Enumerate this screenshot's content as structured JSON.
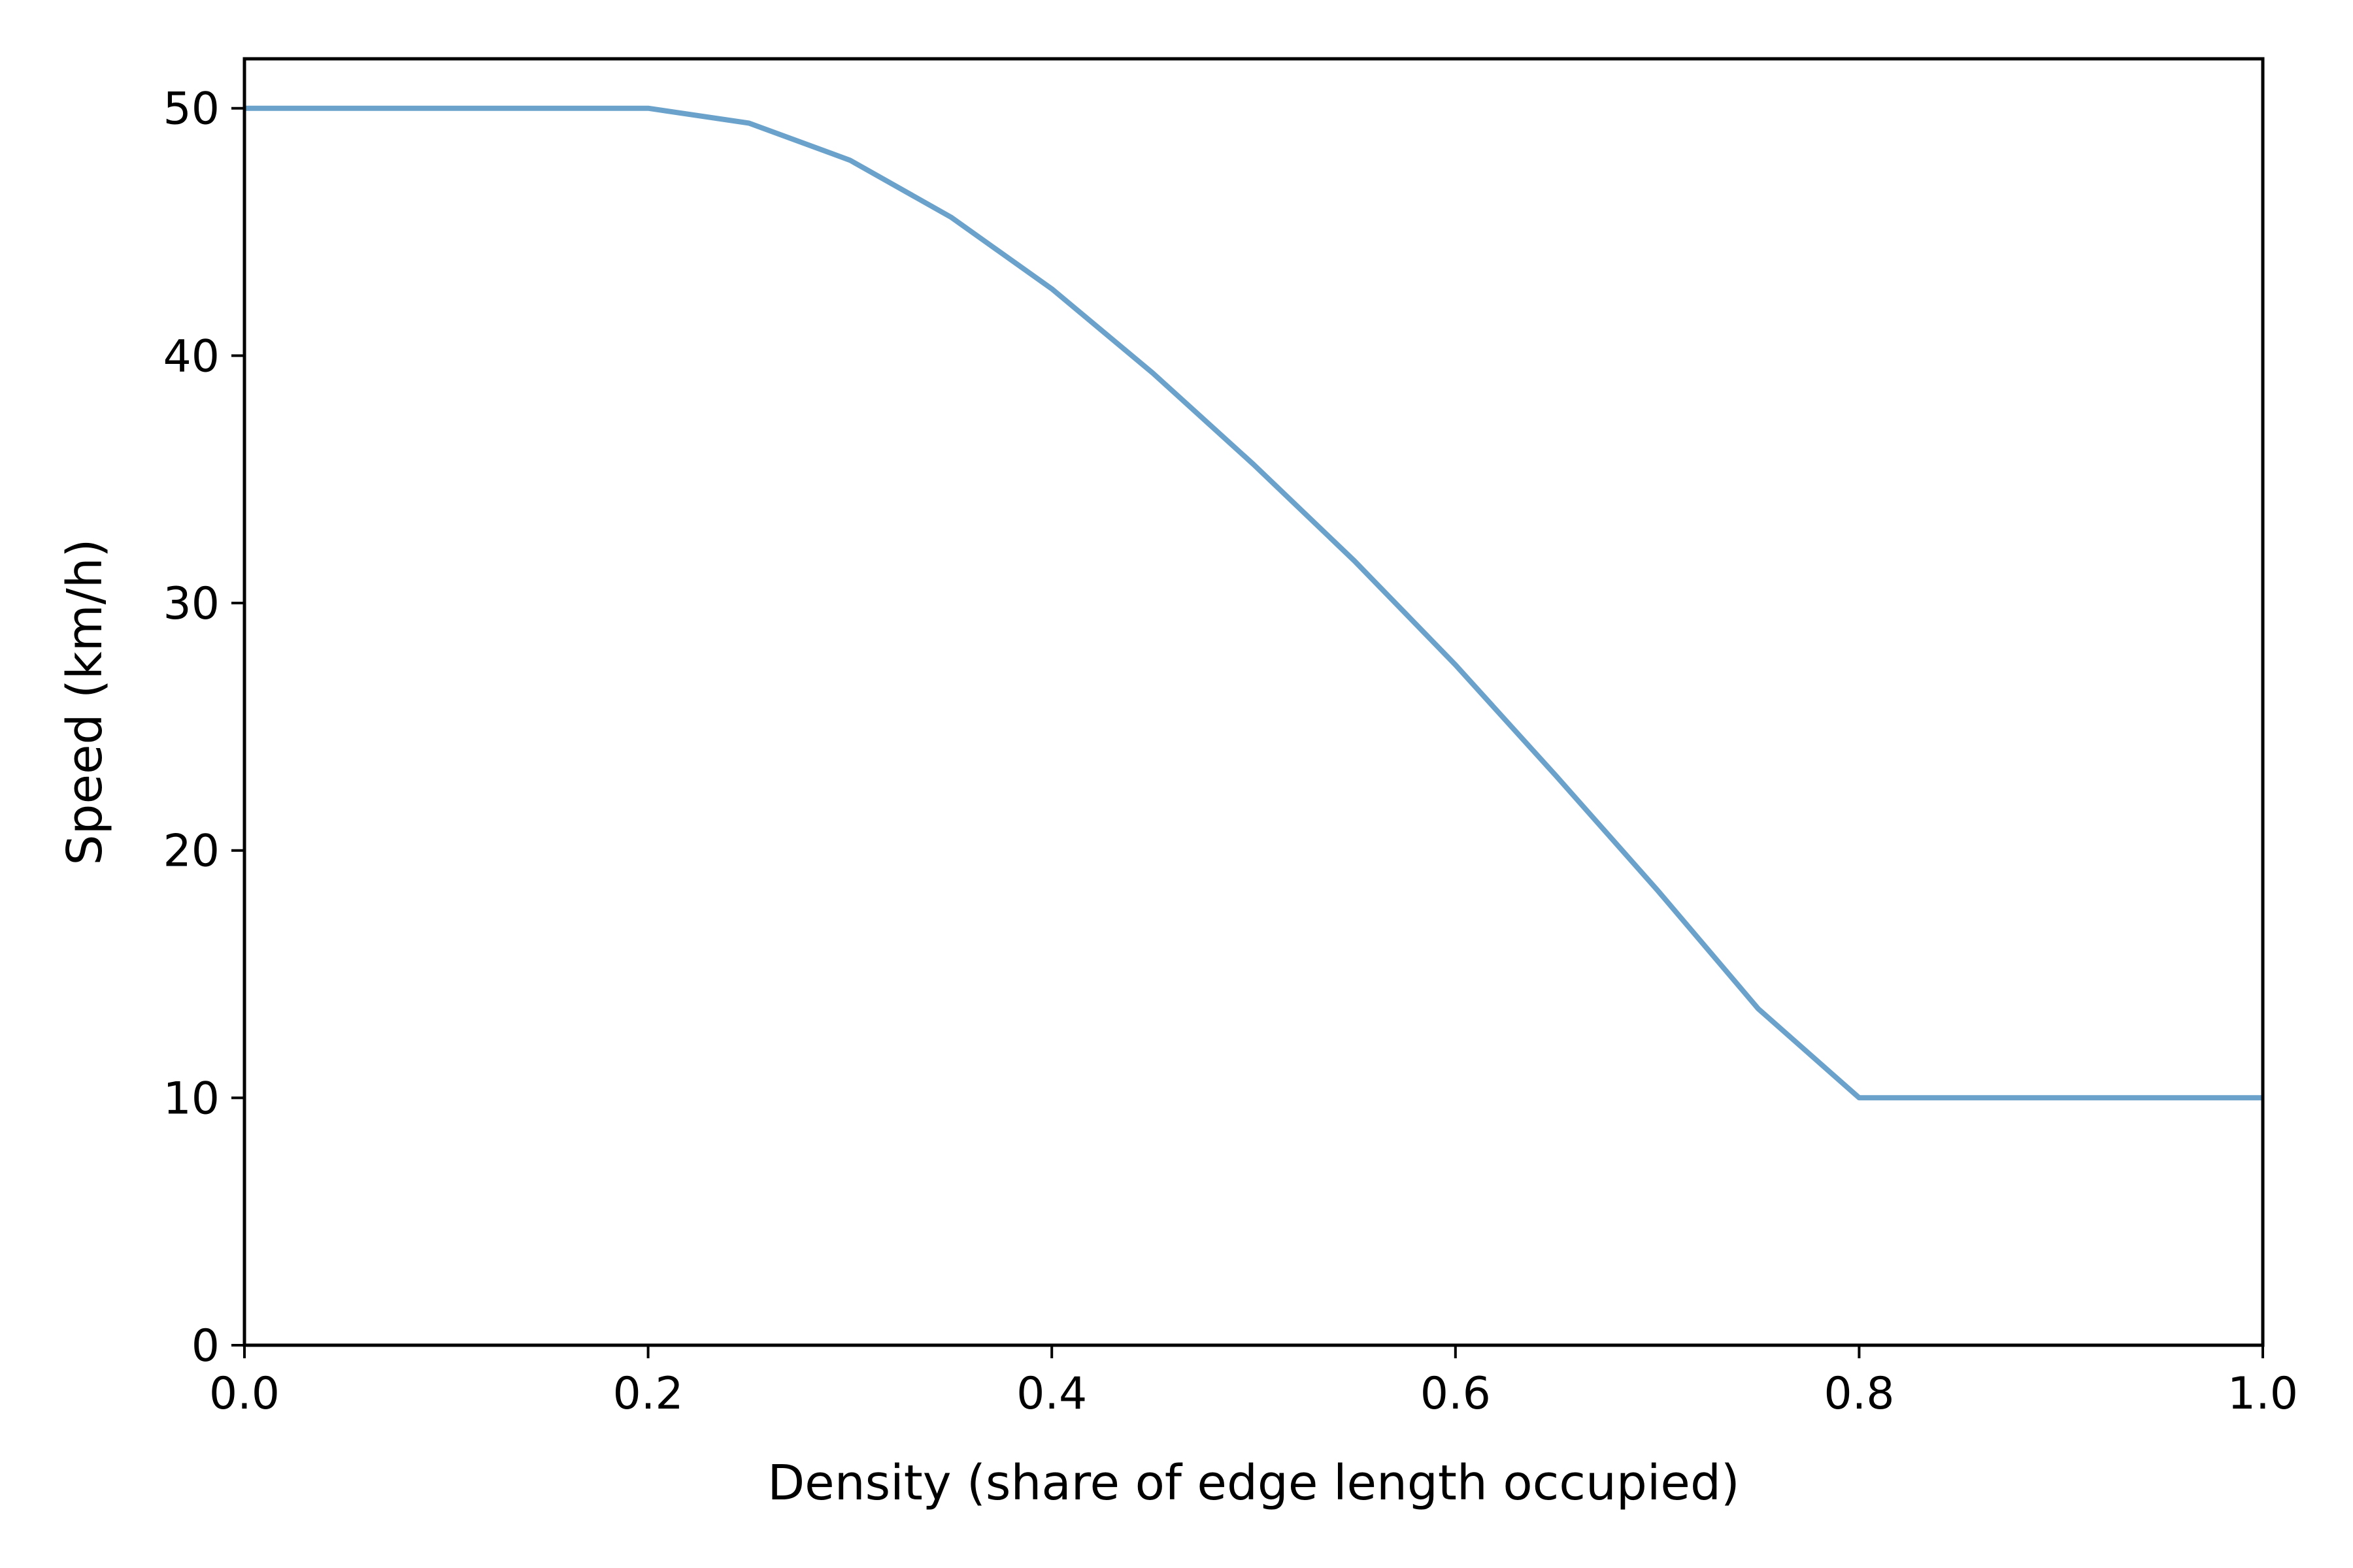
{
  "chart_data": {
    "type": "line",
    "title": "",
    "xlabel": "Density (share of edge length occupied)",
    "ylabel": "Speed (km/h)",
    "xlim": [
      0.0,
      1.0
    ],
    "ylim": [
      0,
      52
    ],
    "x_ticks": [
      "0.0",
      "0.2",
      "0.4",
      "0.6",
      "0.8",
      "1.0"
    ],
    "y_ticks": [
      "0",
      "10",
      "20",
      "30",
      "40",
      "50"
    ],
    "grid": false,
    "legend": "none",
    "series": [
      {
        "color": "#6aa2cb",
        "x": [
          0.0,
          0.2,
          0.25,
          0.3,
          0.35,
          0.4,
          0.45,
          0.5,
          0.55,
          0.6,
          0.65,
          0.7,
          0.75,
          0.8,
          0.85,
          0.9,
          0.95,
          1.0
        ],
        "y": [
          50,
          50,
          49.4,
          47.9,
          45.6,
          42.7,
          39.3,
          35.6,
          31.7,
          27.5,
          23.0,
          18.4,
          13.6,
          10,
          10,
          10,
          10,
          10
        ]
      }
    ]
  }
}
